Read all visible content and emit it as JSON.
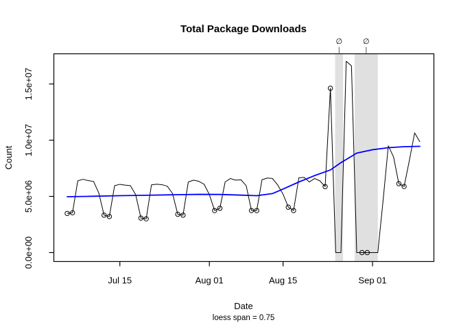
{
  "title": "Total Package Downloads",
  "axes": {
    "x_label": "Date",
    "x_sublabel": "loess span = 0.75",
    "y_label": "Count",
    "x_ticks": [
      {
        "label": "Jul 15",
        "day": 10
      },
      {
        "label": "Aug 01",
        "day": 27
      },
      {
        "label": "Aug 15",
        "day": 41
      },
      {
        "label": "Sep 01",
        "day": 58
      }
    ],
    "y_ticks": [
      {
        "label": "0.0e+00",
        "value_millions": 0
      },
      {
        "label": "5.0e+06",
        "value_millions": 5
      },
      {
        "label": "1.0e+07",
        "value_millions": 10
      },
      {
        "label": "1.5e+07",
        "value_millions": 15
      }
    ]
  },
  "colors": {
    "series_line": "#000000",
    "marker_stroke": "#000000",
    "loess_line": "#0000FF",
    "missing_band": "#E0E0E0",
    "empty_set_symbol": "#808080",
    "band_tick": "#555555"
  },
  "chart_data": {
    "type": "line",
    "title": "Total Package Downloads",
    "xlabel": "Date",
    "ylabel": "Count",
    "annotation": "loess span = 0.75",
    "ylim_millions": [
      -0.8,
      17.7
    ],
    "x_range_days": [
      0,
      67
    ],
    "day_zero_date": "Jul 05",
    "point_format": [
      "date",
      "day_index",
      "count_millions",
      "weekend_marker"
    ],
    "series": [
      {
        "name": "daily_downloads",
        "style": "black line, open circles on weekend/flagged days",
        "points": [
          [
            "Jul 05",
            0,
            3.48,
            true
          ],
          [
            "Jul 06",
            1,
            3.54,
            true
          ],
          [
            "Jul 07",
            2,
            6.38,
            false
          ],
          [
            "Jul 08",
            3,
            6.52,
            false
          ],
          [
            "Jul 09",
            4,
            6.4,
            false
          ],
          [
            "Jul 10",
            5,
            6.33,
            false
          ],
          [
            "Jul 11",
            6,
            5.3,
            false
          ],
          [
            "Jul 12",
            7,
            3.33,
            true
          ],
          [
            "Jul 13",
            8,
            3.21,
            true
          ],
          [
            "Jul 14",
            9,
            5.95,
            false
          ],
          [
            "Jul 15",
            10,
            6.07,
            false
          ],
          [
            "Jul 16",
            11,
            6.0,
            false
          ],
          [
            "Jul 17",
            12,
            5.95,
            false
          ],
          [
            "Jul 18",
            13,
            5.15,
            false
          ],
          [
            "Jul 19",
            14,
            3.07,
            true
          ],
          [
            "Jul 20",
            15,
            3.0,
            true
          ],
          [
            "Jul 21",
            16,
            6.02,
            false
          ],
          [
            "Jul 22",
            17,
            6.08,
            false
          ],
          [
            "Jul 23",
            18,
            6.04,
            false
          ],
          [
            "Jul 24",
            19,
            5.91,
            false
          ],
          [
            "Jul 25",
            20,
            5.26,
            false
          ],
          [
            "Jul 26",
            21,
            3.41,
            true
          ],
          [
            "Jul 27",
            22,
            3.33,
            true
          ],
          [
            "Jul 28",
            23,
            6.28,
            false
          ],
          [
            "Jul 29",
            24,
            6.44,
            false
          ],
          [
            "Jul 30",
            25,
            6.34,
            false
          ],
          [
            "Jul 31",
            26,
            6.08,
            false
          ],
          [
            "Aug 01",
            27,
            5.16,
            false
          ],
          [
            "Aug 02",
            28,
            3.74,
            true
          ],
          [
            "Aug 03",
            29,
            3.94,
            true
          ],
          [
            "Aug 04",
            30,
            6.28,
            false
          ],
          [
            "Aug 05",
            31,
            6.59,
            false
          ],
          [
            "Aug 06",
            32,
            6.44,
            false
          ],
          [
            "Aug 07",
            33,
            6.48,
            false
          ],
          [
            "Aug 08",
            34,
            5.95,
            false
          ],
          [
            "Aug 09",
            35,
            3.74,
            true
          ],
          [
            "Aug 10",
            36,
            3.74,
            true
          ],
          [
            "Aug 11",
            37,
            6.48,
            false
          ],
          [
            "Aug 12",
            38,
            6.63,
            false
          ],
          [
            "Aug 13",
            39,
            6.59,
            false
          ],
          [
            "Aug 14",
            40,
            6.0,
            false
          ],
          [
            "Aug 15",
            41,
            5.2,
            false
          ],
          [
            "Aug 16",
            42,
            4.04,
            true
          ],
          [
            "Aug 17",
            43,
            3.74,
            true
          ],
          [
            "Aug 18",
            44,
            6.65,
            false
          ],
          [
            "Aug 19",
            45,
            6.69,
            false
          ],
          [
            "Aug 20",
            46,
            6.28,
            false
          ],
          [
            "Aug 21",
            47,
            6.59,
            false
          ],
          [
            "Aug 22",
            48,
            6.38,
            false
          ],
          [
            "Aug 23",
            49,
            5.87,
            true
          ],
          [
            "Aug 24",
            50,
            14.62,
            true
          ],
          [
            "Aug 25",
            51,
            0,
            false
          ],
          [
            "Aug 26",
            52,
            0,
            false
          ],
          [
            "Aug 27",
            53,
            17.02,
            false
          ],
          [
            "Aug 28",
            54,
            16.61,
            false
          ],
          [
            "Aug 29",
            55,
            0,
            false
          ],
          [
            "Aug 30",
            56,
            0,
            true
          ],
          [
            "Aug 31",
            57,
            0,
            true
          ],
          [
            "Sep 01",
            58,
            0,
            false
          ],
          [
            "Sep 02",
            59,
            0,
            false
          ],
          [
            "Sep 03",
            60,
            4.6,
            false
          ],
          [
            "Sep 04",
            61,
            9.5,
            false
          ],
          [
            "Sep 05",
            62,
            8.5,
            false
          ],
          [
            "Sep 06",
            63,
            6.13,
            true
          ],
          [
            "Sep 07",
            64,
            5.88,
            true
          ],
          [
            "Sep 08",
            65,
            8.2,
            false
          ],
          [
            "Sep 09",
            66,
            10.65,
            false
          ],
          [
            "Sep 10",
            67,
            9.85,
            false
          ]
        ]
      },
      {
        "name": "loess_fit",
        "style": "blue smooth line",
        "point_format": [
          "day_index",
          "count_millions"
        ],
        "points": [
          [
            0,
            4.97
          ],
          [
            5,
            5.01
          ],
          [
            10,
            5.06
          ],
          [
            15,
            5.1
          ],
          [
            20,
            5.14
          ],
          [
            25,
            5.18
          ],
          [
            29,
            5.17
          ],
          [
            33,
            5.11
          ],
          [
            36,
            5.06
          ],
          [
            39,
            5.25
          ],
          [
            41,
            5.65
          ],
          [
            44,
            6.28
          ],
          [
            47,
            6.85
          ],
          [
            50,
            7.35
          ],
          [
            52,
            8.0
          ],
          [
            55,
            8.85
          ],
          [
            58,
            9.15
          ],
          [
            61,
            9.33
          ],
          [
            64,
            9.42
          ],
          [
            67,
            9.45
          ]
        ]
      }
    ],
    "missing_data_bands": [
      {
        "symbol": "∅",
        "dates": "Aug 25–Aug 26",
        "day_start": 50.9,
        "day_end": 52.4
      },
      {
        "symbol": "∅",
        "dates": "Aug 29–Sep 02",
        "day_start": 54.6,
        "day_end": 59.0
      }
    ]
  }
}
